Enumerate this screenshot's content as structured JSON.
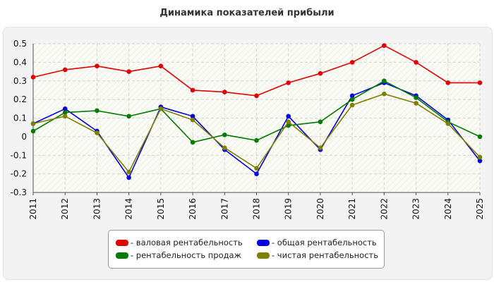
{
  "chart_data": {
    "type": "line",
    "title": "Динамика показателей прибыли",
    "x": [
      "2011",
      "2012",
      "2013",
      "2014",
      "2015",
      "2016",
      "2017",
      "2018",
      "2019",
      "2020",
      "2021",
      "2022",
      "2023",
      "2024",
      "2025"
    ],
    "ylim": [
      -0.3,
      0.5
    ],
    "yticks": [
      -0.3,
      -0.2,
      -0.1,
      0,
      0.1,
      0.2,
      0.3,
      0.4,
      0.5
    ],
    "ytick_labels": [
      "-0.3",
      "-0.2",
      "-0.1",
      "0",
      "0.1",
      "0.2",
      "0.3",
      "0.4",
      "0.5"
    ],
    "grid": true,
    "legend_position": "bottom-center",
    "series": [
      {
        "name": "- валовая рентабельность",
        "color": "#e00000",
        "values": [
          0.32,
          0.36,
          0.38,
          0.35,
          0.38,
          0.25,
          0.24,
          0.22,
          0.29,
          0.34,
          0.4,
          0.49,
          0.4,
          0.29,
          0.29
        ]
      },
      {
        "name": "- общая рентабельность",
        "color": "#0000e0",
        "values": [
          0.07,
          0.15,
          0.03,
          -0.22,
          0.16,
          0.11,
          -0.07,
          -0.2,
          0.11,
          -0.07,
          0.22,
          0.29,
          0.22,
          0.09,
          -0.13
        ]
      },
      {
        "name": "- рентабельность продаж",
        "color": "#007a00",
        "values": [
          0.03,
          0.13,
          0.14,
          0.11,
          0.15,
          -0.03,
          0.01,
          -0.02,
          0.06,
          0.08,
          0.2,
          0.3,
          0.21,
          0.08,
          0.0
        ]
      },
      {
        "name": "- чистая рентабельность",
        "color": "#7f7f00",
        "values": [
          0.07,
          0.11,
          0.02,
          -0.19,
          0.15,
          0.09,
          -0.06,
          -0.17,
          0.08,
          -0.06,
          0.17,
          0.23,
          0.18,
          0.07,
          -0.11
        ]
      }
    ]
  }
}
